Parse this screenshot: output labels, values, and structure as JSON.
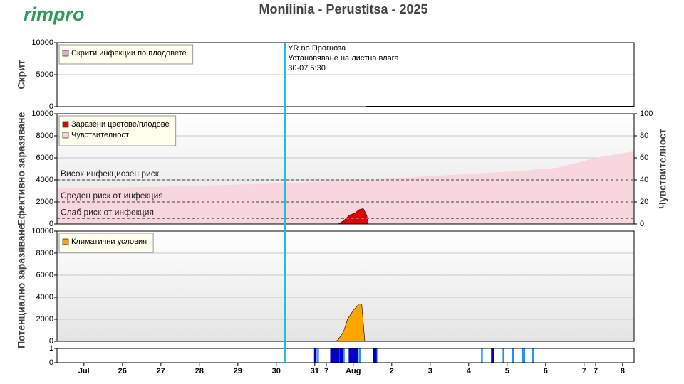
{
  "logo": "rimpro",
  "title": "Monilinia - Perustitsa - 2025",
  "chart_data": [
    {
      "type": "line",
      "ylabel": "Скрит",
      "ylim": [
        0,
        10000
      ],
      "yticks": [
        0,
        5000,
        10000
      ],
      "grid": true,
      "xlim": [
        0,
        15
      ],
      "annotation": {
        "x": 5.93,
        "lines": [
          "YR.no Прогноза",
          "Установяване на листна влага",
          "30-07 5:30"
        ]
      },
      "series": [
        {
          "name": "Скрити инфекции по плодовете",
          "color": "#e6a8d7",
          "line_color": "#000000",
          "x": [
            8.02,
            15
          ],
          "values": [
            0,
            0
          ]
        }
      ]
    },
    {
      "type": "area",
      "ylabel": "Ефективно заразяване",
      "ylim": [
        0,
        10000
      ],
      "yticks": [
        0,
        2000,
        4000,
        6000,
        8000,
        10000
      ],
      "grid": true,
      "y2label": "Чувствителност",
      "y2lim": [
        0,
        100
      ],
      "y2ticks": [
        0,
        20,
        40,
        60,
        80,
        100
      ],
      "xlim": [
        0,
        15
      ],
      "thresholds": [
        {
          "value": 4000,
          "label": "Висок инфекциозен риск"
        },
        {
          "value": 2000,
          "label": "Среден риск от инфекция"
        },
        {
          "value": 500,
          "label": "Слаб риск от инфекция"
        }
      ],
      "series": [
        {
          "name": "Заразени цветове/плодове",
          "color": "#e00000",
          "x": [
            7.31,
            7.45,
            7.6,
            7.75,
            7.85,
            7.96,
            8.05,
            8.09
          ],
          "values": [
            0,
            300,
            800,
            1000,
            1300,
            1400,
            800,
            0
          ]
        },
        {
          "name": "Чувствителност",
          "color": "#f7d6dd",
          "axis": "y2",
          "x": [
            0,
            3,
            5.9,
            8,
            10,
            12,
            13,
            14,
            15
          ],
          "values": [
            32,
            34,
            37,
            40,
            44,
            48,
            51,
            60,
            66
          ]
        }
      ]
    },
    {
      "type": "area",
      "ylabel": "Потенциално заразяване",
      "ylim": [
        0,
        10000
      ],
      "yticks": [
        0,
        2000,
        4000,
        6000,
        8000,
        10000
      ],
      "grid": true,
      "xlim": [
        0,
        15
      ],
      "series": [
        {
          "name": "Климатични условия",
          "color": "#ffa500",
          "x": [
            7.22,
            7.3,
            7.45,
            7.55,
            7.7,
            7.85,
            7.92,
            8.0
          ],
          "values": [
            0,
            100,
            900,
            2000,
            2800,
            3400,
            3400,
            0
          ]
        }
      ]
    },
    {
      "type": "bar",
      "ylim": [
        0,
        1
      ],
      "yticks": [
        0,
        1
      ],
      "xlim": [
        0,
        15
      ],
      "xticks": [
        {
          "value": 0.7,
          "label": "Jul"
        },
        {
          "value": 1.7,
          "label": "26"
        },
        {
          "value": 2.7,
          "label": "27"
        },
        {
          "value": 3.7,
          "label": "28"
        },
        {
          "value": 4.7,
          "label": "29"
        },
        {
          "value": 5.7,
          "label": "30"
        },
        {
          "value": 6.7,
          "label": "31"
        },
        {
          "value": 7.0,
          "label": "7"
        },
        {
          "value": 7.7,
          "label": "Aug"
        },
        {
          "value": 8.7,
          "label": "2"
        },
        {
          "value": 9.7,
          "label": "3"
        },
        {
          "value": 10.7,
          "label": "4"
        },
        {
          "value": 11.7,
          "label": "5"
        },
        {
          "value": 12.7,
          "label": "6"
        },
        {
          "value": 13.7,
          "label": "7"
        },
        {
          "value": 14.0,
          "label": "7"
        },
        {
          "value": 14.7,
          "label": "8"
        }
      ],
      "series": [
        {
          "color": "#0000c8",
          "x": [
            6.7,
            6.72,
            7.12,
            7.15,
            7.18,
            7.21,
            7.25,
            7.28,
            7.31,
            7.36,
            7.4,
            7.6,
            7.63,
            7.66,
            7.7,
            7.73,
            7.76,
            7.8,
            8.24,
            8.28,
            11.3,
            11.33
          ],
          "values": [
            1,
            1,
            1,
            1,
            1,
            1,
            1,
            1,
            1,
            1,
            1,
            1,
            1,
            1,
            1,
            1,
            1,
            1,
            1,
            1,
            1,
            1
          ]
        },
        {
          "color": "#1e90ff",
          "x": [
            6.78,
            7.45,
            7.86,
            8.3,
            11.04,
            11.6,
            11.85,
            12.1,
            12.14,
            12.36
          ],
          "values": [
            1,
            1,
            1,
            1,
            1,
            1,
            1,
            1,
            1,
            1
          ]
        }
      ]
    }
  ]
}
